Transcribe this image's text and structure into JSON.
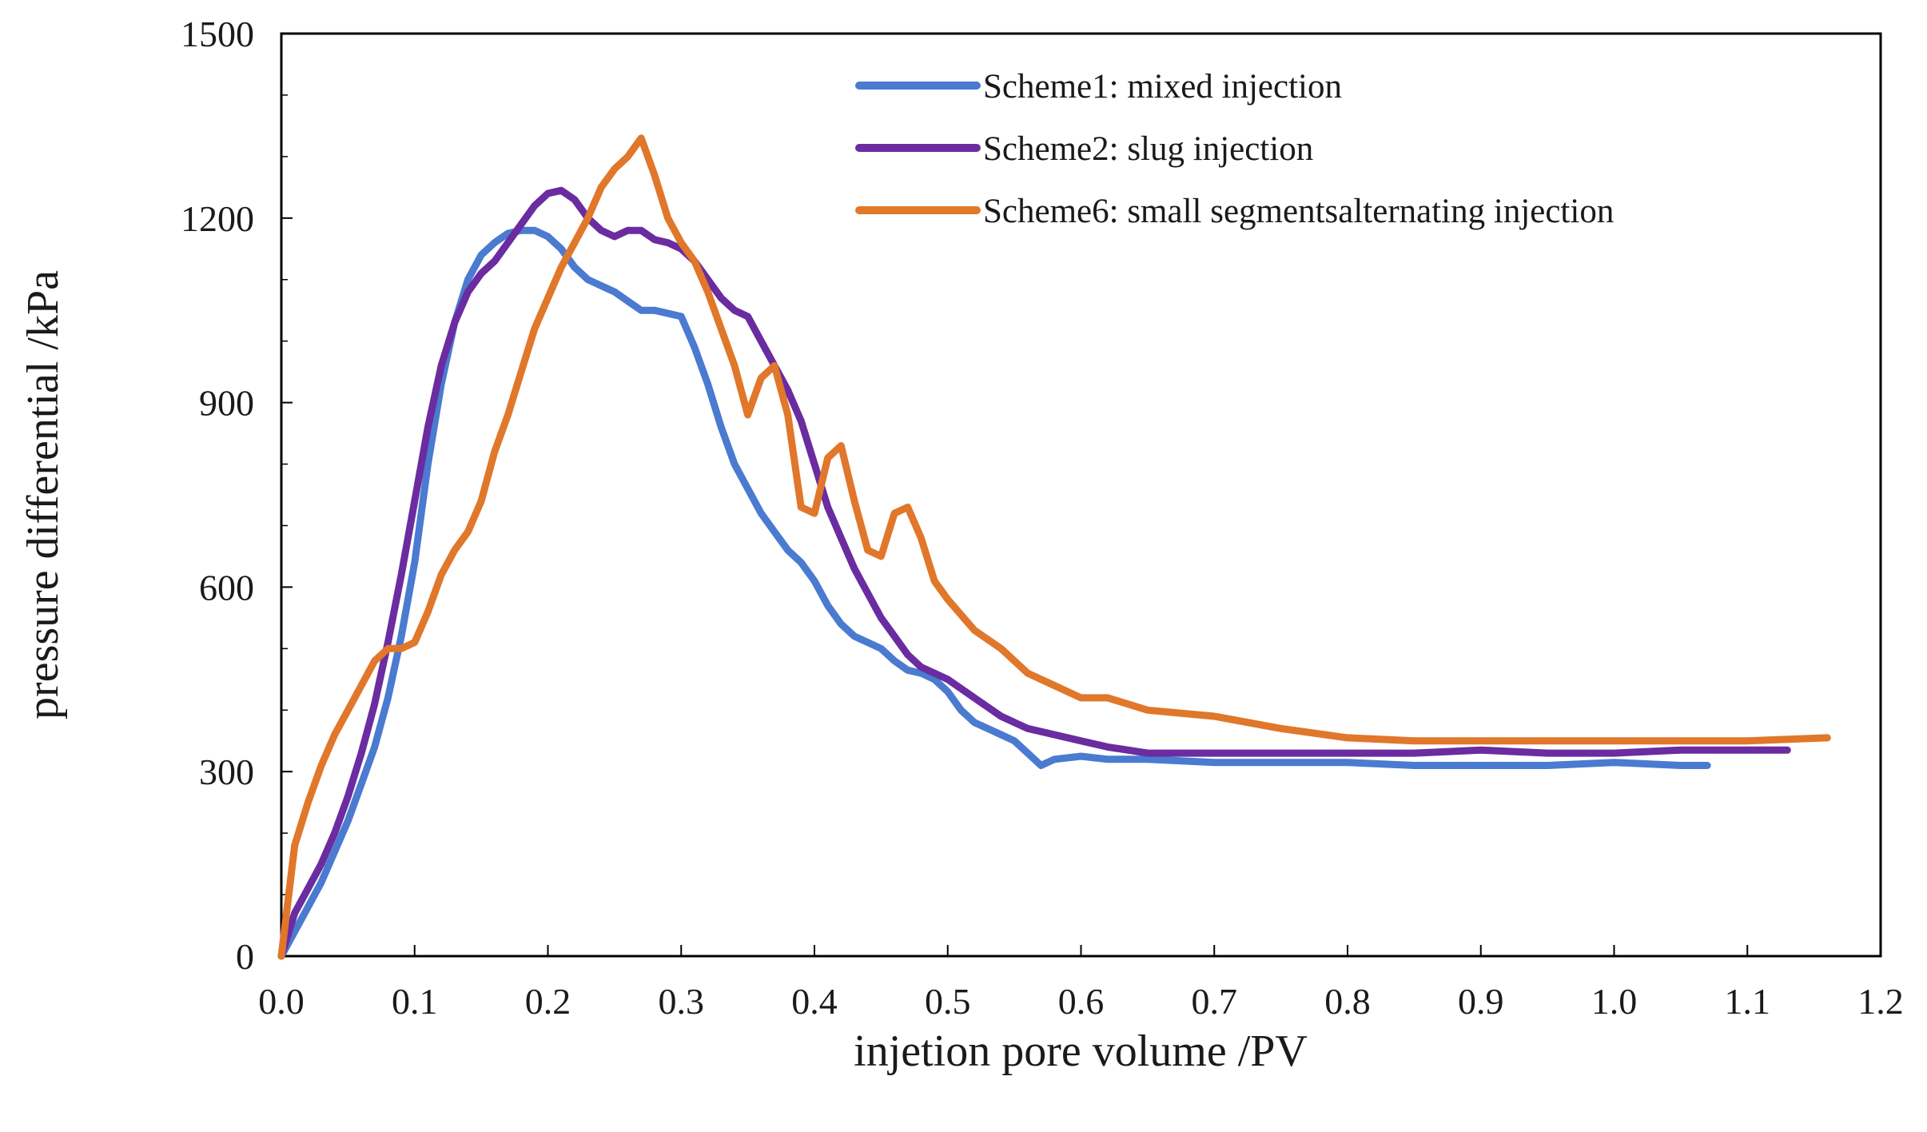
{
  "chart_data": {
    "type": "line",
    "xlabel": "injetion pore volume /PV",
    "ylabel": "pressure differential /kPa",
    "xlim": [
      0,
      1.2
    ],
    "ylim": [
      0,
      1500
    ],
    "x_ticks": [
      "0.0",
      "0.1",
      "0.2",
      "0.3",
      "0.4",
      "0.5",
      "0.6",
      "0.7",
      "0.8",
      "0.9",
      "1.0",
      "1.1",
      "1.2"
    ],
    "y_ticks": [
      "0",
      "300",
      "600",
      "900",
      "1200",
      "1500"
    ],
    "x_tick_values": [
      0,
      0.1,
      0.2,
      0.3,
      0.4,
      0.5,
      0.6,
      0.7,
      0.8,
      0.9,
      1.0,
      1.1,
      1.2
    ],
    "y_tick_values": [
      0,
      300,
      600,
      900,
      1200,
      1500
    ],
    "grid": false,
    "legend_position": "top-right",
    "series": [
      {
        "name": "Scheme1: mixed injection",
        "color": "#4a7bd0",
        "x": [
          0,
          0.01,
          0.02,
          0.03,
          0.04,
          0.05,
          0.06,
          0.07,
          0.08,
          0.09,
          0.1,
          0.11,
          0.12,
          0.13,
          0.14,
          0.15,
          0.16,
          0.17,
          0.18,
          0.19,
          0.2,
          0.21,
          0.22,
          0.23,
          0.24,
          0.25,
          0.26,
          0.27,
          0.28,
          0.29,
          0.3,
          0.31,
          0.32,
          0.33,
          0.34,
          0.35,
          0.36,
          0.37,
          0.38,
          0.39,
          0.4,
          0.41,
          0.42,
          0.43,
          0.44,
          0.45,
          0.46,
          0.47,
          0.48,
          0.49,
          0.5,
          0.51,
          0.52,
          0.53,
          0.54,
          0.55,
          0.56,
          0.57,
          0.58,
          0.6,
          0.62,
          0.65,
          0.7,
          0.75,
          0.8,
          0.85,
          0.9,
          0.95,
          1.0,
          1.05,
          1.07
        ],
        "y": [
          0,
          40,
          80,
          120,
          170,
          220,
          280,
          340,
          420,
          520,
          640,
          800,
          930,
          1030,
          1100,
          1140,
          1160,
          1175,
          1180,
          1180,
          1170,
          1150,
          1120,
          1100,
          1090,
          1080,
          1065,
          1050,
          1050,
          1045,
          1040,
          990,
          930,
          860,
          800,
          760,
          720,
          690,
          660,
          640,
          610,
          570,
          540,
          520,
          510,
          500,
          480,
          465,
          460,
          450,
          430,
          400,
          380,
          370,
          360,
          350,
          330,
          310,
          320,
          325,
          320,
          320,
          315,
          315,
          315,
          310,
          310,
          310,
          315,
          310,
          310
        ]
      },
      {
        "name": "Scheme2: slug injection",
        "color": "#6a2ca0",
        "x": [
          0,
          0.01,
          0.02,
          0.03,
          0.04,
          0.05,
          0.06,
          0.07,
          0.08,
          0.09,
          0.1,
          0.11,
          0.12,
          0.13,
          0.14,
          0.15,
          0.16,
          0.17,
          0.18,
          0.19,
          0.2,
          0.21,
          0.22,
          0.23,
          0.24,
          0.25,
          0.26,
          0.27,
          0.28,
          0.29,
          0.3,
          0.31,
          0.32,
          0.33,
          0.34,
          0.35,
          0.36,
          0.37,
          0.38,
          0.39,
          0.4,
          0.41,
          0.42,
          0.43,
          0.44,
          0.45,
          0.46,
          0.47,
          0.48,
          0.49,
          0.5,
          0.52,
          0.54,
          0.56,
          0.58,
          0.6,
          0.62,
          0.65,
          0.7,
          0.75,
          0.8,
          0.85,
          0.9,
          0.95,
          1.0,
          1.05,
          1.1,
          1.13
        ],
        "y": [
          0,
          70,
          110,
          150,
          200,
          260,
          330,
          410,
          510,
          620,
          740,
          860,
          960,
          1030,
          1080,
          1110,
          1130,
          1160,
          1190,
          1220,
          1240,
          1245,
          1230,
          1200,
          1180,
          1170,
          1180,
          1180,
          1165,
          1160,
          1150,
          1130,
          1100,
          1070,
          1050,
          1040,
          1000,
          960,
          920,
          870,
          800,
          730,
          680,
          630,
          590,
          550,
          520,
          490,
          470,
          460,
          450,
          420,
          390,
          370,
          360,
          350,
          340,
          330,
          330,
          330,
          330,
          330,
          335,
          330,
          330,
          335,
          335,
          335
        ]
      },
      {
        "name": "Scheme6: small segmentsalternating injection",
        "color": "#e0772a",
        "x": [
          0,
          0.01,
          0.02,
          0.03,
          0.04,
          0.05,
          0.06,
          0.07,
          0.08,
          0.09,
          0.1,
          0.11,
          0.12,
          0.13,
          0.14,
          0.15,
          0.16,
          0.17,
          0.18,
          0.19,
          0.2,
          0.21,
          0.22,
          0.23,
          0.24,
          0.25,
          0.26,
          0.27,
          0.28,
          0.29,
          0.3,
          0.31,
          0.32,
          0.33,
          0.34,
          0.35,
          0.36,
          0.37,
          0.38,
          0.39,
          0.4,
          0.41,
          0.42,
          0.43,
          0.44,
          0.45,
          0.46,
          0.47,
          0.48,
          0.49,
          0.5,
          0.52,
          0.54,
          0.56,
          0.58,
          0.6,
          0.62,
          0.65,
          0.7,
          0.75,
          0.8,
          0.85,
          0.9,
          0.95,
          1.0,
          1.05,
          1.1,
          1.16
        ],
        "y": [
          0,
          180,
          250,
          310,
          360,
          400,
          440,
          480,
          500,
          500,
          510,
          560,
          620,
          660,
          690,
          740,
          820,
          880,
          950,
          1020,
          1070,
          1120,
          1160,
          1200,
          1250,
          1280,
          1300,
          1330,
          1270,
          1200,
          1160,
          1130,
          1080,
          1020,
          960,
          880,
          940,
          960,
          880,
          730,
          720,
          810,
          830,
          740,
          660,
          650,
          720,
          730,
          680,
          610,
          580,
          530,
          500,
          460,
          440,
          420,
          420,
          400,
          390,
          370,
          355,
          350,
          350,
          350,
          350,
          350,
          350,
          355
        ]
      }
    ]
  }
}
